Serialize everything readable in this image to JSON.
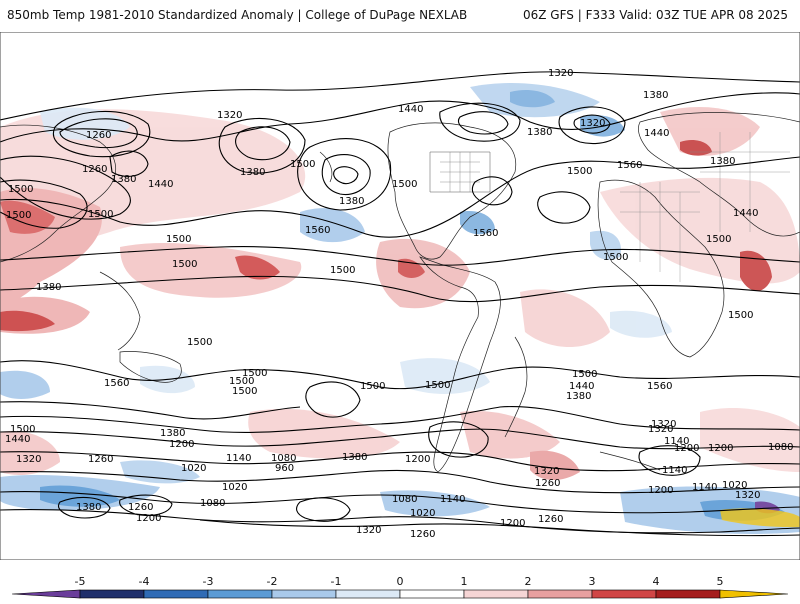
{
  "header": {
    "title": "850mb Temp 1981-2010 Standardized Anomaly | College of DuPage NEXLAB",
    "run_info": "06Z GFS | F333 Valid: 03Z TUE APR 08 2025"
  },
  "map": {
    "height_contour_labels": [
      "1320",
      "1380",
      "1440",
      "1260",
      "1320",
      "1380",
      "1500",
      "1320",
      "1260",
      "1380",
      "1440",
      "1380",
      "1500",
      "1560",
      "1500",
      "1380",
      "1440",
      "1380",
      "1500",
      "1500",
      "1500",
      "1500",
      "1560",
      "1500",
      "1440",
      "1560",
      "1500",
      "1380",
      "1500",
      "1500",
      "1500",
      "1500",
      "1500",
      "1500",
      "1500",
      "1500",
      "1440",
      "1560",
      "1560",
      "1500",
      "1500",
      "1380",
      "1320",
      "1140",
      "1500",
      "1440",
      "1380",
      "1320",
      "1380",
      "1260",
      "1200",
      "1140",
      "1080",
      "960",
      "1020",
      "1020",
      "1080",
      "1200",
      "1260",
      "1380",
      "1260",
      "1200",
      "1080",
      "1140",
      "1020",
      "1200",
      "1320",
      "1140",
      "1200",
      "1320",
      "1260",
      "1320",
      "1140",
      "1200",
      "1080",
      "1020",
      "1320",
      "1260",
      "1200"
    ]
  },
  "colorbar": {
    "ticks": [
      "-5",
      "-4",
      "-3",
      "-2",
      "-1",
      "0",
      "1",
      "2",
      "3",
      "4",
      "5"
    ],
    "colors": {
      "lt_-5": "#6a3d9a",
      "-5_-4": "#1f2f6b",
      "-4_-3": "#2f6bb5",
      "-3_-2": "#5b9bd5",
      "-2_-1": "#a9c9ea",
      "-1_0": "#dce9f6",
      "0_1": "#ffffff",
      "1_2": "#f6d5d5",
      "2_3": "#e8a0a0",
      "3_4": "#d04545",
      "4_5": "#a51d1d",
      "gt_5": "#f0c000"
    }
  }
}
